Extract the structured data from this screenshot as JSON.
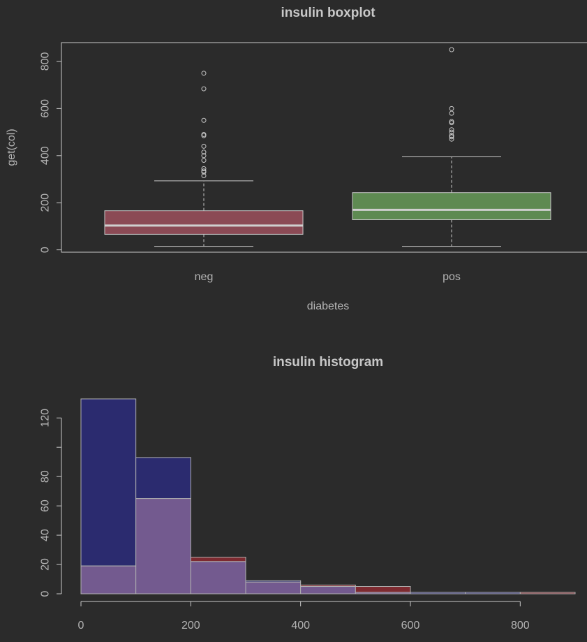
{
  "chart_data": [
    {
      "type": "boxplot",
      "title": "insulin boxplot",
      "xlabel": "diabetes",
      "ylabel": "get(col)",
      "ylim": [
        -10,
        880
      ],
      "yticks": [
        0,
        200,
        400,
        600,
        800
      ],
      "categories": [
        "neg",
        "pos"
      ],
      "colors": [
        "#8b4a55",
        "#5e8a52"
      ],
      "boxes": [
        {
          "name": "neg",
          "whisker_low": 15,
          "q1": 66,
          "median": 103,
          "q3": 166,
          "whisker_high": 293,
          "outliers": [
            750,
            684,
            550,
            490,
            485,
            440,
            415,
            400,
            380,
            345,
            335,
            330,
            315
          ]
        },
        {
          "name": "pos",
          "whisker_low": 15,
          "q1": 128,
          "median": 170,
          "q3": 243,
          "whisker_high": 395,
          "outliers": [
            850,
            600,
            580,
            545,
            540,
            510,
            500,
            485,
            480,
            470
          ]
        }
      ]
    },
    {
      "type": "histogram",
      "title": "insulin histogram",
      "xlabel": "",
      "ylabel": "",
      "xlim": [
        0,
        900
      ],
      "ylim": [
        0,
        135
      ],
      "xticks": [
        0,
        200,
        400,
        600,
        800
      ],
      "yticks": [
        0,
        20,
        40,
        60,
        80,
        120
      ],
      "bin_edges": [
        0,
        100,
        200,
        300,
        400,
        500,
        600,
        700,
        800,
        900
      ],
      "series": [
        {
          "color": "#2b2b6f",
          "values": [
            133,
            93,
            22,
            9,
            5,
            1,
            1,
            1,
            0
          ]
        },
        {
          "color": "#7d2a30",
          "values": [
            19,
            65,
            25,
            8,
            6,
            5,
            0,
            0,
            1
          ]
        }
      ],
      "overlap_color": "#735a8f"
    }
  ]
}
